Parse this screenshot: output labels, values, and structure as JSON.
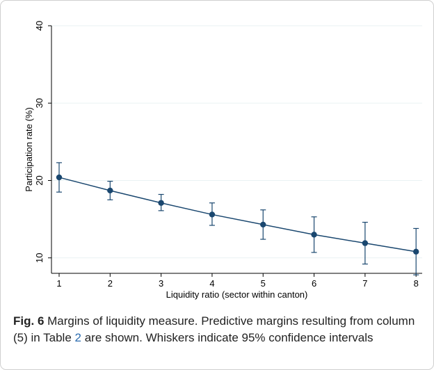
{
  "chart_data": {
    "type": "line",
    "title": "",
    "xlabel": "Liquidity ratio (sector within canton)",
    "ylabel": "Participation rate (%)",
    "x": [
      1,
      2,
      3,
      4,
      5,
      6,
      7,
      8
    ],
    "xticks": [
      "1",
      "2",
      "3",
      "4",
      "5",
      "6",
      "7",
      "8"
    ],
    "yticks": [
      "10",
      "20",
      "30",
      "40"
    ],
    "ylim": [
      8,
      40
    ],
    "grid": true,
    "series": [
      {
        "values": [
          20.4,
          18.7,
          17.1,
          15.6,
          14.3,
          13.0,
          11.9,
          10.8
        ],
        "ci_lower": [
          18.5,
          17.5,
          16.1,
          14.2,
          12.4,
          10.7,
          9.2,
          7.8
        ],
        "ci_upper": [
          22.3,
          19.9,
          18.2,
          17.1,
          16.2,
          15.3,
          14.6,
          13.8
        ],
        "color": "#1a476f"
      }
    ]
  },
  "caption": {
    "label": "Fig. 6",
    "text_before": " Margins of liquidity measure. Predictive margins resulting from column (5) in Table ",
    "table_ref": "2",
    "text_after": " are shown. Whiskers indicate 95% confidence intervals"
  }
}
